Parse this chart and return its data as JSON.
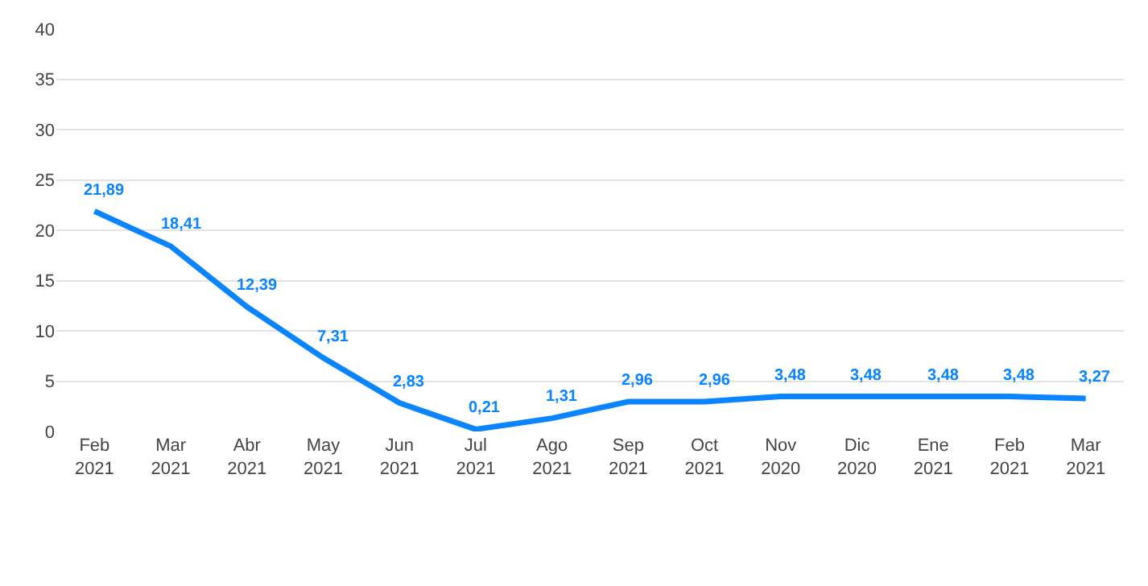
{
  "chart_data": {
    "type": "line",
    "categories": [
      "Feb\n2021",
      "Mar\n2021",
      "Abr\n2021",
      "May\n2021",
      "Jun\n2021",
      "Jul\n2021",
      "Ago\n2021",
      "Sep\n2021",
      "Oct\n2021",
      "Nov\n2020",
      "Dic\n2020",
      "Ene\n2021",
      "Feb\n2021",
      "Mar\n2021"
    ],
    "series": [
      {
        "color": "#0a84ff",
        "values": [
          21.89,
          18.41,
          12.39,
          7.31,
          2.83,
          0.21,
          1.31,
          2.96,
          2.96,
          3.48,
          3.48,
          3.48,
          3.48,
          3.27
        ],
        "value_labels": [
          "21,89",
          "18,41",
          "12,39",
          "7,31",
          "2,83",
          "0,21",
          "1,31",
          "2,96",
          "2,96",
          "3,48",
          "3,48",
          "3,48",
          "3,48",
          "3,27"
        ]
      }
    ],
    "ylim": [
      0,
      40
    ],
    "yticks": [
      0,
      5,
      10,
      15,
      20,
      25,
      30,
      35,
      40
    ],
    "grid": "y",
    "legend": false,
    "marker": "none",
    "line_style": "solid"
  }
}
